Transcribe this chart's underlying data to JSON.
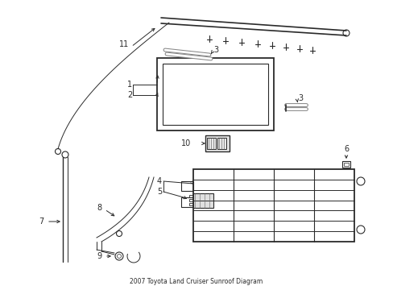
{
  "title": "2007 Toyota Land Cruiser Sunroof Diagram",
  "background_color": "#ffffff",
  "line_color": "#2a2a2a",
  "fig_width": 4.89,
  "fig_height": 3.6,
  "dpi": 100
}
